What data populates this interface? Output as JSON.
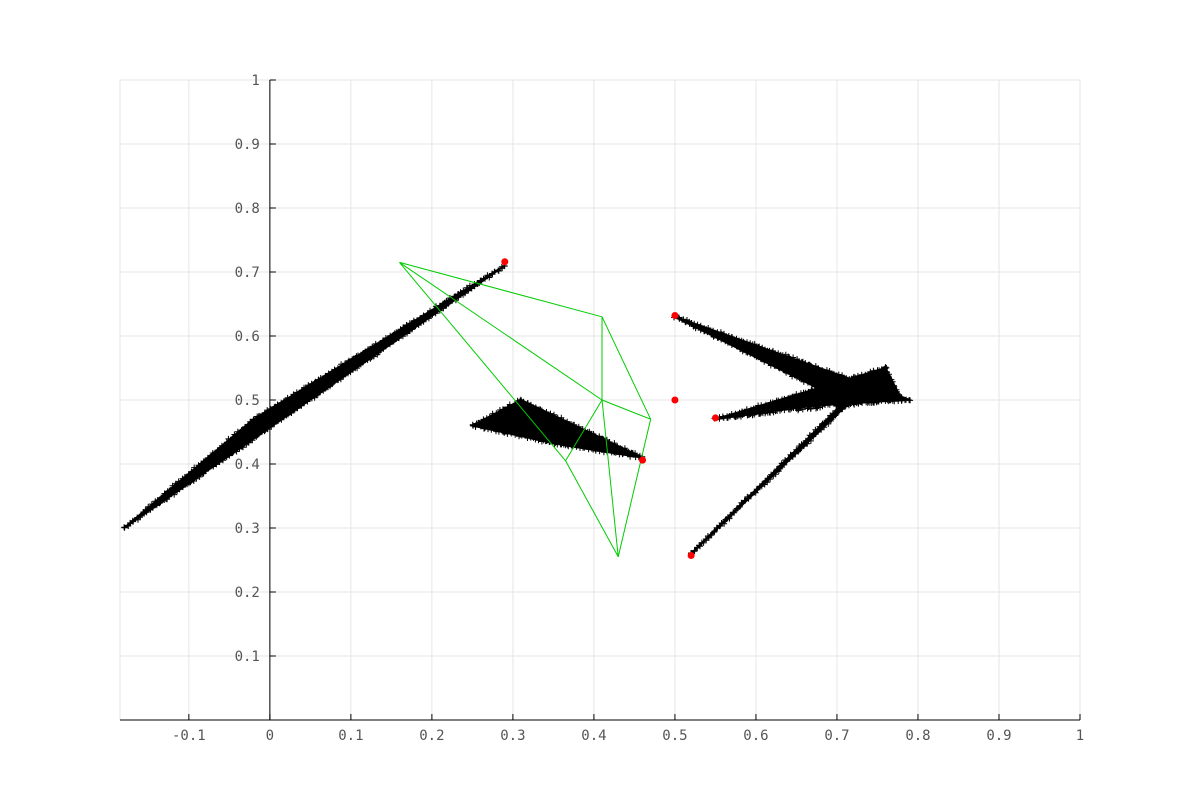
{
  "chart_data": {
    "type": "scatter",
    "title": "",
    "xlabel": "",
    "ylabel": "",
    "xlim": [
      -0.185,
      1.0
    ],
    "ylim": [
      0.0,
      1.0
    ],
    "grid": true,
    "legend": "none",
    "x_ticks": [
      -0.1,
      0,
      0.1,
      0.2,
      0.3,
      0.4,
      0.5,
      0.6,
      0.7,
      0.8,
      0.9,
      1
    ],
    "x_tick_labels": [
      "-0.1",
      "0",
      "0.1",
      "0.2",
      "0.3",
      "0.4",
      "0.5",
      "0.6",
      "0.7",
      "0.8",
      "0.9",
      "1"
    ],
    "y_ticks": [
      0.1,
      0.2,
      0.3,
      0.4,
      0.5,
      0.6,
      0.7,
      0.8,
      0.9,
      1
    ],
    "y_tick_labels": [
      "0.1",
      "0.2",
      "0.3",
      "0.4",
      "0.5",
      "0.6",
      "0.7",
      "0.8",
      "0.9",
      "1"
    ],
    "colors": {
      "grid": "#e6e6e6",
      "axis": "#000000",
      "points": "#000000",
      "markers": "#ff0000",
      "mesh": "#00cc00",
      "tick_text": "#555555"
    },
    "point_clouds": [
      {
        "shape": "polygon",
        "vertices": [
          [
            -0.18,
            0.3
          ],
          [
            0.29,
            0.71
          ],
          [
            -0.02,
            0.47
          ]
        ]
      },
      {
        "shape": "polygon",
        "vertices": [
          [
            0.25,
            0.46
          ],
          [
            0.31,
            0.5
          ],
          [
            0.46,
            0.41
          ],
          [
            0.36,
            0.43
          ]
        ]
      },
      {
        "shape": "polygon",
        "vertices": [
          [
            0.5,
            0.63
          ],
          [
            0.79,
            0.5
          ],
          [
            0.69,
            0.51
          ]
        ]
      },
      {
        "shape": "polygon",
        "vertices": [
          [
            0.55,
            0.47
          ],
          [
            0.76,
            0.55
          ],
          [
            0.78,
            0.5
          ],
          [
            0.66,
            0.49
          ]
        ]
      },
      {
        "shape": "polygon",
        "vertices": [
          [
            0.52,
            0.26
          ],
          [
            0.76,
            0.55
          ],
          [
            0.72,
            0.51
          ]
        ]
      }
    ],
    "markers": [
      {
        "x": 0.29,
        "y": 0.716
      },
      {
        "x": 0.5,
        "y": 0.632
      },
      {
        "x": 0.5,
        "y": 0.5
      },
      {
        "x": 0.55,
        "y": 0.472
      },
      {
        "x": 0.46,
        "y": 0.406
      },
      {
        "x": 0.52,
        "y": 0.257
      }
    ],
    "mesh_nodes": [
      {
        "id": "A",
        "x": 0.16,
        "y": 0.715
      },
      {
        "id": "B",
        "x": 0.41,
        "y": 0.63
      },
      {
        "id": "C",
        "x": 0.41,
        "y": 0.5
      },
      {
        "id": "D",
        "x": 0.47,
        "y": 0.47
      },
      {
        "id": "E",
        "x": 0.365,
        "y": 0.405
      },
      {
        "id": "F",
        "x": 0.43,
        "y": 0.255
      }
    ],
    "mesh_edges": [
      [
        "A",
        "B"
      ],
      [
        "B",
        "D"
      ],
      [
        "D",
        "F"
      ],
      [
        "F",
        "E"
      ],
      [
        "E",
        "A"
      ],
      [
        "A",
        "C"
      ],
      [
        "B",
        "C"
      ],
      [
        "C",
        "D"
      ],
      [
        "C",
        "E"
      ],
      [
        "C",
        "F"
      ]
    ]
  }
}
